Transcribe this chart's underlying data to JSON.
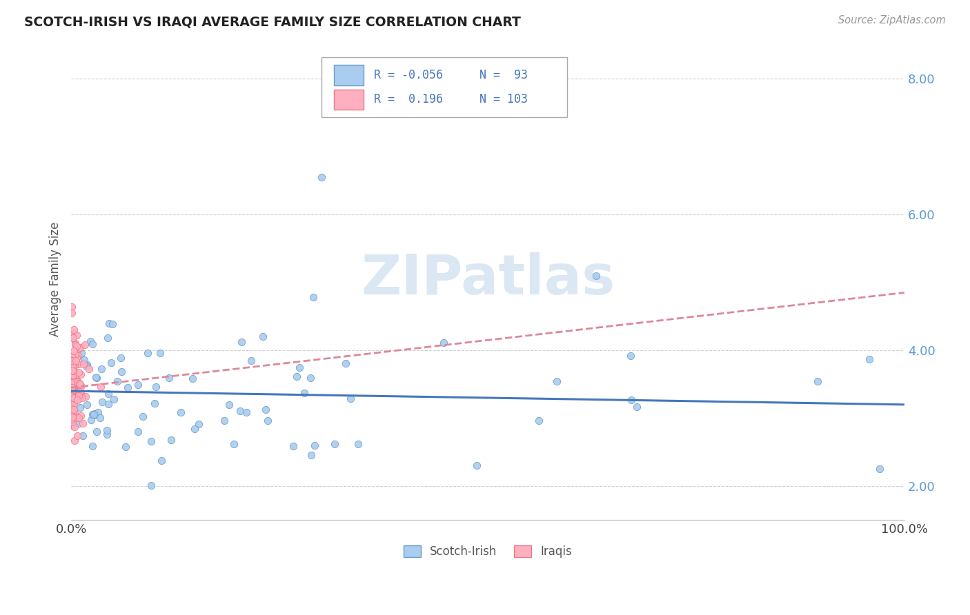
{
  "title": "SCOTCH-IRISH VS IRAQI AVERAGE FAMILY SIZE CORRELATION CHART",
  "source_text": "Source: ZipAtlas.com",
  "ylabel": "Average Family Size",
  "xlim": [
    0.0,
    1.0
  ],
  "ylim": [
    1.5,
    8.6
  ],
  "yticks": [
    2.0,
    4.0,
    6.0,
    8.0
  ],
  "xtick_labels": [
    "0.0%",
    "100.0%"
  ],
  "ytick_labels": [
    "2.00",
    "4.00",
    "6.00",
    "8.00"
  ],
  "background_color": "#ffffff",
  "grid_color": "#d0d0d0",
  "watermark_text": "ZIPatlas",
  "watermark_color": "#b8d0e8",
  "scotch_irish_dot_color": "#aaccee",
  "scotch_irish_edge_color": "#6699cc",
  "iraqi_dot_color": "#ffb0c0",
  "iraqi_edge_color": "#ee7788",
  "scotch_trend_color": "#4477bb",
  "iraqi_trend_color": "#dd8899",
  "legend_scotch_label": "Scotch-Irish",
  "legend_iraqi_label": "Iraqis",
  "R_scotch": -0.056,
  "N_scotch": 93,
  "R_iraqi": 0.196,
  "N_iraqi": 103,
  "si_trend_x0": 0.0,
  "si_trend_y0": 3.4,
  "si_trend_x1": 1.0,
  "si_trend_y1": 3.2,
  "iq_trend_x0": 0.0,
  "iq_trend_y0": 3.45,
  "iq_trend_x1": 1.0,
  "iq_trend_y1": 4.85
}
